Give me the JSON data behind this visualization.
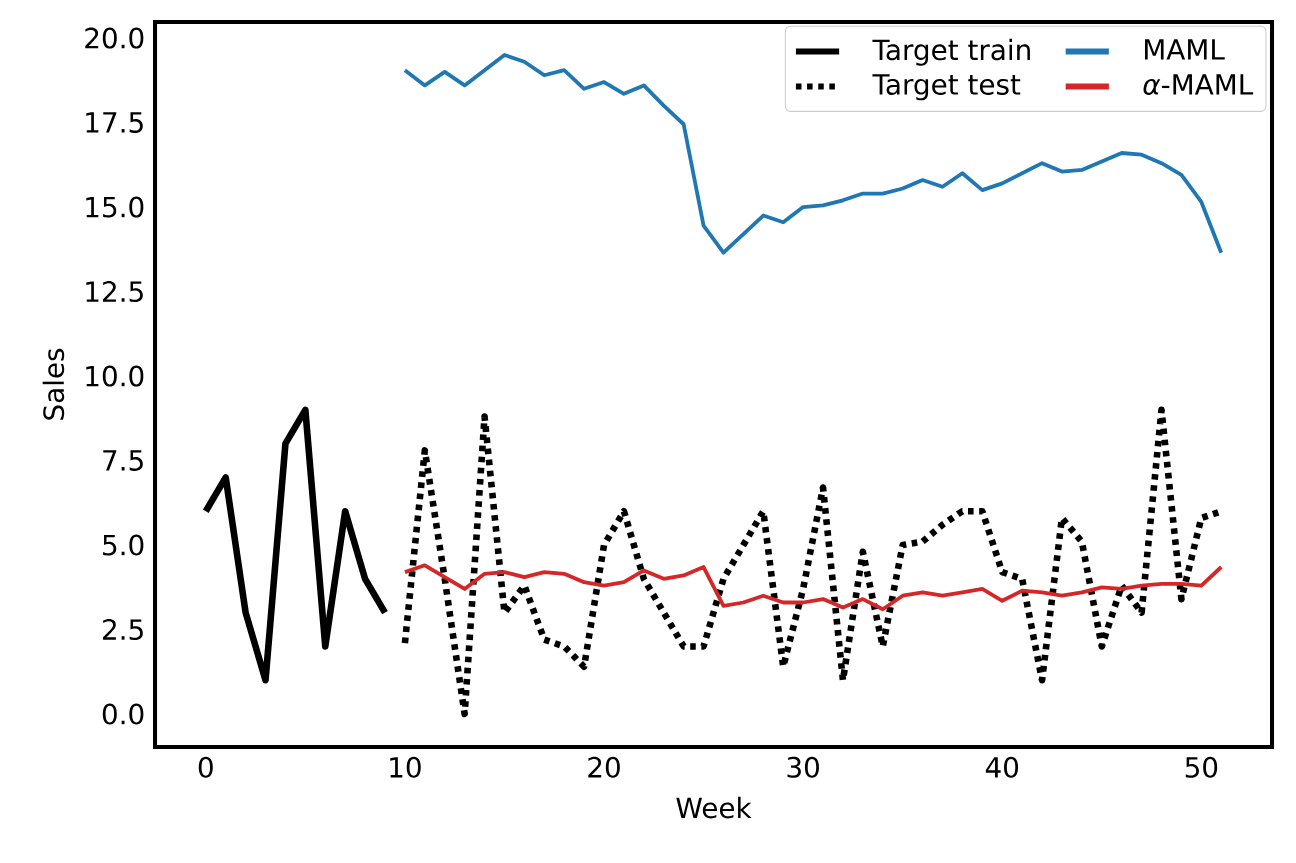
{
  "chart_data": {
    "type": "line",
    "xlabel": "Week",
    "ylabel": "Sales",
    "xlim": [
      -2.55,
      53.55
    ],
    "ylim": [
      -0.975,
      20.475
    ],
    "xticks": [
      0,
      10,
      20,
      30,
      40,
      50
    ],
    "yticks": [
      {
        "value": 0,
        "label": "0.0"
      },
      {
        "value": 2.5,
        "label": "2.5"
      },
      {
        "value": 5,
        "label": "5.0"
      },
      {
        "value": 7.5,
        "label": "7.5"
      },
      {
        "value": 10,
        "label": "10.0"
      },
      {
        "value": 12.5,
        "label": "12.5"
      },
      {
        "value": 15,
        "label": "15.0"
      },
      {
        "value": 17.5,
        "label": "17.5"
      },
      {
        "value": 20,
        "label": "20.0"
      }
    ],
    "grid": false,
    "legend": "top right",
    "series": [
      {
        "name": "Target train",
        "color": "#000000",
        "line_style": "solid",
        "x": [
          0,
          1,
          2,
          3,
          4,
          5,
          6,
          7,
          8,
          9
        ],
        "values": [
          6,
          7,
          3,
          1,
          8,
          9,
          2,
          6,
          4,
          3
        ]
      },
      {
        "name": "Target test",
        "color": "#000000",
        "line_style": "dotted",
        "x": [
          10,
          11,
          12,
          13,
          14,
          15,
          16,
          17,
          18,
          19,
          20,
          21,
          22,
          23,
          24,
          25,
          26,
          27,
          28,
          29,
          30,
          31,
          32,
          33,
          34,
          35,
          36,
          37,
          38,
          39,
          40,
          41,
          42,
          43,
          44,
          45,
          46,
          47,
          48,
          49,
          50,
          51
        ],
        "values": [
          2.1,
          7.8,
          4,
          0,
          8.8,
          3,
          3.8,
          2.2,
          2,
          1.4,
          5,
          6,
          4,
          3,
          2,
          2,
          4,
          5,
          6,
          1.4,
          3.7,
          6.7,
          1,
          4.8,
          2,
          5,
          5.1,
          5.6,
          6,
          6,
          4.2,
          4,
          1,
          5.8,
          5.1,
          2,
          3.8,
          3,
          9,
          3.4,
          5.8,
          6
        ]
      },
      {
        "name": "MAML",
        "color": "#1f77b4",
        "line_style": "solid",
        "x": [
          10,
          11,
          12,
          13,
          14,
          15,
          16,
          17,
          18,
          19,
          20,
          21,
          22,
          23,
          24,
          25,
          26,
          27,
          28,
          29,
          30,
          31,
          32,
          33,
          34,
          35,
          36,
          37,
          38,
          39,
          40,
          41,
          42,
          43,
          44,
          45,
          46,
          47,
          48,
          49,
          50,
          51
        ],
        "values": [
          19.05,
          18.6,
          19,
          18.6,
          19.05,
          19.5,
          19.3,
          18.9,
          19.05,
          18.5,
          18.7,
          18.35,
          18.6,
          18,
          17.45,
          14.45,
          13.65,
          14.2,
          14.75,
          14.55,
          15,
          15.05,
          15.2,
          15.4,
          15.4,
          15.55,
          15.8,
          15.6,
          16,
          15.5,
          15.7,
          16,
          16.3,
          16.05,
          16.1,
          16.35,
          16.6,
          16.55,
          16.3,
          15.95,
          15.15,
          13.65
        ]
      },
      {
        "name": "*α*-MAML",
        "color": "#d62728",
        "line_style": "solid",
        "x": [
          10,
          11,
          12,
          13,
          14,
          15,
          16,
          17,
          18,
          19,
          20,
          21,
          22,
          23,
          24,
          25,
          26,
          27,
          28,
          29,
          30,
          31,
          32,
          33,
          34,
          35,
          36,
          37,
          38,
          39,
          40,
          41,
          42,
          43,
          44,
          45,
          46,
          47,
          48,
          49,
          50,
          51
        ],
        "values": [
          4.2,
          4.4,
          4.05,
          3.7,
          4.15,
          4.2,
          4.05,
          4.2,
          4.15,
          3.9,
          3.8,
          3.9,
          4.25,
          4,
          4.1,
          4.35,
          3.2,
          3.3,
          3.5,
          3.3,
          3.3,
          3.4,
          3.15,
          3.4,
          3.1,
          3.5,
          3.6,
          3.5,
          3.6,
          3.7,
          3.35,
          3.65,
          3.6,
          3.5,
          3.6,
          3.75,
          3.7,
          3.8,
          3.85,
          3.85,
          3.8,
          4.35
        ]
      }
    ]
  }
}
